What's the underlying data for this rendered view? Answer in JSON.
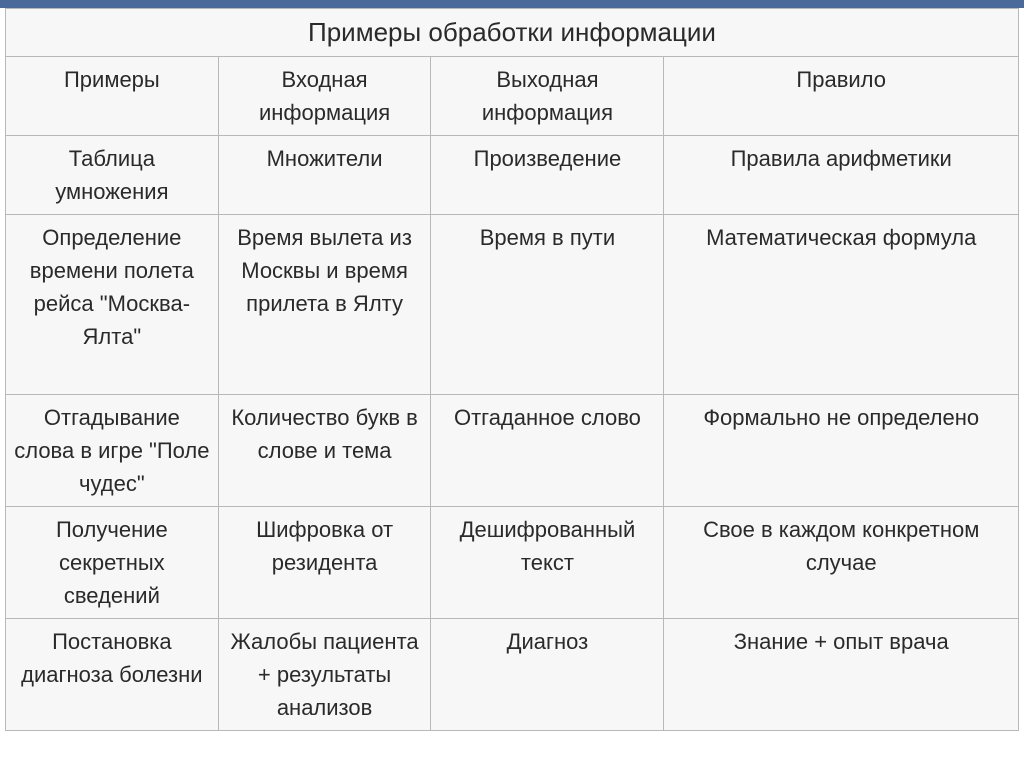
{
  "table": {
    "title": "Примеры обработки информации",
    "background_color": "#f7f7f7",
    "border_color": "#b8b8b8",
    "title_fontsize": 26,
    "cell_fontsize": 22,
    "text_color": "#2a2a2a",
    "top_bar_color": "#4a6a9c",
    "columns": [
      {
        "label": "Примеры",
        "width_pct": 21
      },
      {
        "label": "Входная информация",
        "width_pct": 21
      },
      {
        "label": "Выходная информация",
        "width_pct": 23
      },
      {
        "label": "Правило",
        "width_pct": 35
      }
    ],
    "rows": [
      {
        "c0": "Таблица умножения",
        "c1": "Множители",
        "c2": "Произведение",
        "c3": "Правила арифметики"
      },
      {
        "c0": "Определение времени полета рейса \"Москва-Ялта\"",
        "c1": "Время вылета из Москвы и время прилета в Ялту",
        "c2": "Время в пути",
        "c3": "Математическая формула",
        "tall": true
      },
      {
        "c0": "Отгадывание слова в игре \"Поле чудес\"",
        "c1": "Количество букв в слове и тема",
        "c2": "Отгаданное слово",
        "c3": "Формально не определено"
      },
      {
        "c0": "Получение секретных сведений",
        "c1": "Шифровка от резидента",
        "c2": "Дешифрованный текст",
        "c3": "Свое в каждом конкретном случае"
      },
      {
        "c0": "Постановка диагноза болезни",
        "c1": "Жалобы пациента + результаты анализов",
        "c2": "Диагноз",
        "c3": "Знание + опыт врача"
      }
    ]
  }
}
